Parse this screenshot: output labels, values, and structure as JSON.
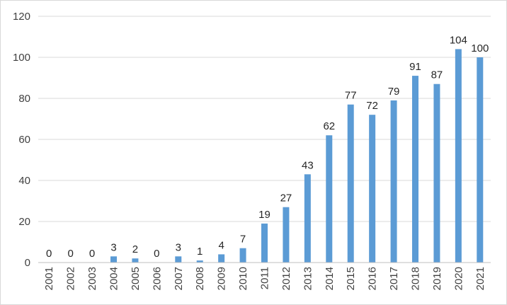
{
  "chart_data": {
    "type": "bar",
    "title": "",
    "xlabel": "",
    "ylabel": "",
    "categories": [
      "2001",
      "2002",
      "2003",
      "2004",
      "2005",
      "2006",
      "2007",
      "2008",
      "2009",
      "2010",
      "2011",
      "2012",
      "2013",
      "2014",
      "2015",
      "2016",
      "2017",
      "2018",
      "2019",
      "2020",
      "2021"
    ],
    "values": [
      0,
      0,
      0,
      3,
      2,
      0,
      3,
      1,
      4,
      7,
      19,
      27,
      43,
      62,
      77,
      72,
      79,
      91,
      87,
      104,
      100
    ],
    "data_labels": [
      "0",
      "0",
      "0",
      "3",
      "2",
      "0",
      "3",
      "1",
      "4",
      "7",
      "19",
      "27",
      "43",
      "62",
      "77",
      "72",
      "79",
      "91",
      "87",
      "104",
      "100"
    ],
    "ylim": [
      0,
      120
    ],
    "yticks": [
      0,
      20,
      40,
      60,
      80,
      100,
      120
    ],
    "ytick_labels": [
      "0",
      "20",
      "40",
      "60",
      "80",
      "100",
      "120"
    ],
    "grid": "horizontal",
    "legend": "none",
    "colors": {
      "bar": "#5b9bd5",
      "grid": "#d9d9d9",
      "axis": "#bfbfbf",
      "tick_text": "#404040",
      "label_text": "#262626"
    }
  }
}
